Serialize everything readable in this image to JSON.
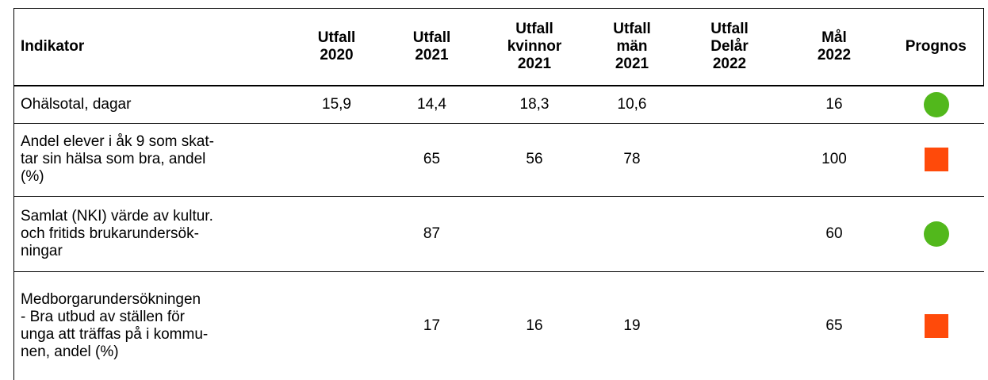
{
  "table": {
    "header": [
      "Indikator",
      "Utfall\n2020",
      "Utfall\n2021",
      "Utfall\nkvinnor\n2021",
      "Utfall\nmän\n2021",
      "Utfall\nDelår\n2022",
      "Mål\n2022",
      "Prognos"
    ],
    "rows": [
      {
        "cells": [
          "Ohälsotal, dagar",
          "15,9",
          "14,4",
          "18,3",
          "10,6",
          null,
          "16"
        ],
        "prognos": {
          "shape": "circle",
          "color": "#52b81c"
        }
      },
      {
        "cells": [
          "Andel elever i åk 9 som skat-\ntar sin hälsa som bra, andel\n(%)",
          null,
          "65",
          "56",
          "78",
          null,
          "100"
        ],
        "prognos": {
          "shape": "square",
          "color": "#ff4a0a"
        }
      },
      {
        "cells": [
          "Samlat (NKI) värde av kultur.\noch fritids brukarundersök-\nningar",
          null,
          "87",
          null,
          null,
          null,
          "60"
        ],
        "prognos": {
          "shape": "circle",
          "color": "#52b81c"
        }
      },
      {
        "cells": [
          "Medborgarundersökningen\n- Bra utbud av ställen för\nunga att träffas på i kommu-\nnen, andel (%)",
          null,
          "17",
          "16",
          "19",
          null,
          "65"
        ],
        "prognos": {
          "shape": "square",
          "color": "#ff4a0a"
        }
      }
    ]
  }
}
